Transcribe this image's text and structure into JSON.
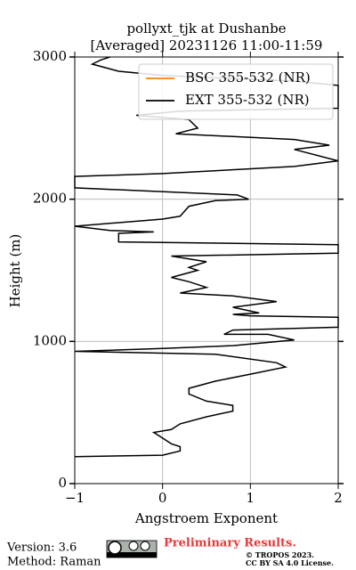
{
  "chart_data": {
    "type": "line",
    "title": "pollyxt_tjk at Dushanbe",
    "subtitle": "[Averaged] 20231126 11:00-11:59",
    "x_label": "Angstroem Exponent",
    "y_label": "Height (m)",
    "xlim": [
      -1,
      2
    ],
    "xticks": [
      {
        "value": -1,
        "label": "−1"
      },
      0,
      1,
      2
    ],
    "ylim": [
      0,
      3000
    ],
    "yticks": [
      0,
      1000,
      2000,
      3000
    ],
    "grid": true,
    "legend": "upper right",
    "y": [
      190,
      200,
      230,
      260,
      280,
      320,
      360,
      380,
      420,
      470,
      510,
      550,
      580,
      630,
      670,
      720,
      770,
      820,
      850,
      910,
      930,
      950,
      970,
      1010,
      1050,
      1050,
      1080,
      1100,
      1170,
      1180,
      1190,
      1200,
      1240,
      1280,
      1320,
      1340,
      1380,
      1420,
      1450,
      1500,
      1520,
      1560,
      1600,
      1620,
      1680,
      1700,
      1760,
      1770,
      1780,
      1810,
      1850,
      1860,
      1880,
      1950,
      1990,
      2000,
      2030,
      2080,
      2160,
      2180,
      2230,
      2270,
      2350,
      2380,
      2420,
      2460,
      2500,
      2560,
      2590,
      2620,
      2640,
      2800,
      2830,
      2870,
      2900,
      2950,
      2980,
      3000
    ],
    "series": [
      {
        "name": "BSC 355-532 (NR)",
        "color": "#ff7f0e",
        "values": [
          null,
          null,
          null,
          null,
          null,
          null,
          null,
          null,
          null,
          null,
          null,
          null,
          null,
          null,
          null,
          null,
          null,
          null,
          null,
          null,
          null,
          null,
          null,
          null,
          null,
          null,
          null,
          null,
          null,
          null,
          null,
          null,
          null,
          null,
          null,
          null,
          null,
          null,
          null,
          null,
          null,
          null,
          null,
          null,
          null,
          null,
          null,
          null,
          null,
          null,
          null,
          null,
          null,
          null,
          null,
          null,
          null,
          null,
          null,
          null,
          null,
          null,
          null,
          null,
          null,
          null,
          null,
          null,
          null,
          null,
          null,
          null,
          null,
          null,
          null,
          null,
          null,
          null
        ]
      },
      {
        "name": "EXT 355-532 (NR)",
        "color": "#000000",
        "values": [
          -1,
          0.0,
          0.2,
          0.2,
          0.1,
          0.0,
          -0.1,
          0.1,
          0.2,
          0.5,
          0.8,
          0.8,
          0.5,
          0.3,
          0.3,
          0.6,
          1.0,
          1.4,
          1.3,
          0.6,
          -1,
          0.0,
          0.8,
          1.5,
          1.2,
          0.7,
          0.8,
          2.0,
          2.0,
          1.0,
          0.8,
          1.1,
          0.8,
          1.3,
          0.8,
          0.2,
          0.5,
          0.3,
          0.1,
          0.4,
          0.3,
          0.5,
          0.1,
          2.0,
          2.0,
          -0.5,
          -0.5,
          -0.1,
          -0.6,
          -1.0,
          -0.2,
          0.0,
          0.2,
          0.3,
          0.6,
          0.98,
          0.85,
          -1.0,
          -1.0,
          0.0,
          1.5,
          2.0,
          1.5,
          1.9,
          1.5,
          0.15,
          0.4,
          0.3,
          -0.3,
          0.2,
          2.0,
          2.0,
          1.5,
          0.0,
          -0.5,
          -0.8,
          -0.7,
          -0.6
        ]
      }
    ]
  },
  "footer": {
    "version": "Version: 3.6",
    "method": "Method: Raman",
    "status": "Preliminary Results.",
    "copyright": "© TROPOS 2023.",
    "license": "CC BY SA 4.0 License."
  }
}
